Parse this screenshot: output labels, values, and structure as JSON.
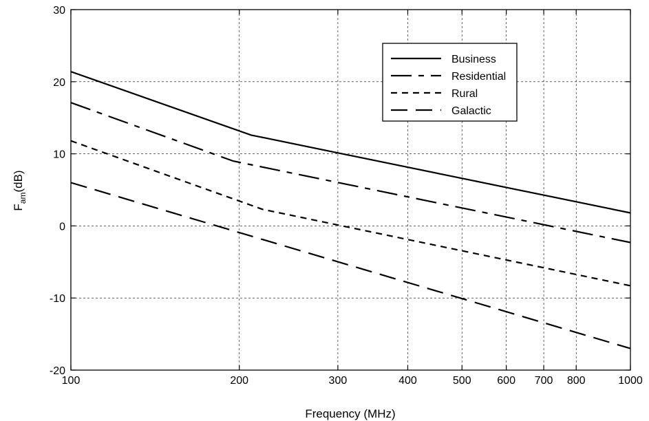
{
  "chart_data": {
    "type": "line",
    "xscale": "log",
    "xlim": [
      100,
      1000
    ],
    "ylim": [
      -20,
      30
    ],
    "xticks": [
      100,
      200,
      300,
      400,
      500,
      600,
      700,
      800,
      1000
    ],
    "xtick_labels": [
      "100",
      "200",
      "300",
      "400",
      "500",
      "600",
      "700",
      "800",
      "1000"
    ],
    "yticks": [
      -20,
      -10,
      0,
      10,
      20,
      30
    ],
    "ytick_labels": [
      "-20",
      "-10",
      "0",
      "10",
      "20",
      "30"
    ],
    "xlabel": "Frequency (MHz)",
    "ylabel_main": "F",
    "ylabel_sub": "am",
    "ylabel_tail": "(dB)",
    "grid": true,
    "legend_position": "top-right",
    "series": [
      {
        "name": "Business",
        "dash": "solid",
        "points": [
          [
            100,
            21.4
          ],
          [
            210,
            12.6
          ],
          [
            1000,
            1.8
          ]
        ]
      },
      {
        "name": "Residential",
        "dash": "long-short",
        "points": [
          [
            100,
            17.1
          ],
          [
            195,
            9.0
          ],
          [
            1000,
            -2.3
          ]
        ]
      },
      {
        "name": "Rural",
        "dash": "short",
        "points": [
          [
            100,
            11.8
          ],
          [
            220,
            2.3
          ],
          [
            1000,
            -8.3
          ]
        ]
      },
      {
        "name": "Galactic",
        "dash": "long",
        "points": [
          [
            100,
            6.0
          ],
          [
            1000,
            -17.0
          ]
        ]
      }
    ]
  }
}
